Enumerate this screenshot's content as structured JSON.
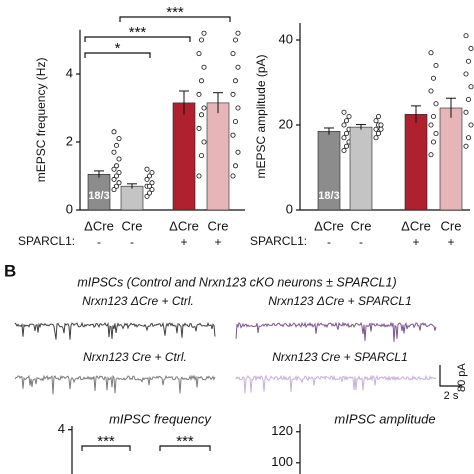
{
  "panel_b": {
    "label": "B",
    "title": "mIPSCs (Control and Nrxn123 cKO neurons ± SPARCL1)",
    "traces": [
      "Nrxn123 ΔCre + Ctrl.",
      "Nrxn123 ΔCre + SPARCL1",
      "Nrxn123 Cre + Ctrl.",
      "Nrxn123 Cre + SPARCL1"
    ],
    "scale_y": "80 pA",
    "scale_x": "2 s"
  },
  "chart_data": [
    {
      "type": "bar",
      "y_label": "mEPSC frequency (Hz)",
      "categories": [
        "ΔCre",
        "Cre",
        "ΔCre",
        "Cre"
      ],
      "sparcl1_label": "SPARCL1:",
      "sparcl1": [
        "-",
        "-",
        "+",
        "+"
      ],
      "values": [
        1.05,
        0.7,
        3.15,
        3.15
      ],
      "errors": [
        0.1,
        0.07,
        0.35,
        0.3
      ],
      "colors": [
        "#8c8c8c",
        "#c4c4c4",
        "#b0212f",
        "#e5b5b8"
      ],
      "bar_label": "18/3",
      "points": [
        [
          0.6,
          0.7,
          0.8,
          0.9,
          1.0,
          1.1,
          1.2,
          1.3,
          1.5,
          1.7,
          1.9,
          2.1,
          2.3
        ],
        [
          0.4,
          0.5,
          0.6,
          0.7,
          0.7,
          0.8,
          0.9,
          1.0,
          1.1,
          1.2
        ],
        [
          1.0,
          1.6,
          2.0,
          2.4,
          2.8,
          3.0,
          3.4,
          3.8,
          4.2,
          4.6,
          5.0,
          5.2
        ],
        [
          1.0,
          1.3,
          1.7,
          2.2,
          2.6,
          3.0,
          3.4,
          3.8,
          4.2,
          4.6,
          5.0,
          5.2
        ]
      ],
      "significance": [
        "***",
        "***",
        "*"
      ],
      "ylim": [
        0,
        5.3
      ],
      "yticks": [
        0,
        2,
        4
      ]
    },
    {
      "type": "bar",
      "y_label": "mEPSC amplitude (pA)",
      "categories": [
        "ΔCre",
        "Cre",
        "ΔCre",
        "Cre"
      ],
      "sparcl1_label": "SPARCL1:",
      "sparcl1": [
        "-",
        "-",
        "+",
        "+"
      ],
      "values": [
        18.5,
        19.5,
        22.5,
        24
      ],
      "errors": [
        0.8,
        0.6,
        2,
        2.3
      ],
      "colors": [
        "#8c8c8c",
        "#c4c4c4",
        "#b0212f",
        "#e5b5b8"
      ],
      "bar_label": "18/3",
      "points": [
        [
          14,
          15,
          16,
          17,
          18,
          19,
          20,
          21,
          22,
          23
        ],
        [
          17,
          18,
          19,
          19,
          20,
          20,
          21,
          22
        ],
        [
          13,
          16,
          18,
          20,
          22,
          25,
          28,
          31,
          34,
          37
        ],
        [
          15,
          17,
          20,
          23,
          26,
          29,
          32,
          35,
          38,
          41
        ]
      ],
      "ylim": [
        0,
        44
      ],
      "yticks": [
        0,
        20,
        40
      ]
    },
    {
      "type": "bar",
      "title": "mIPSC frequency",
      "significance": [
        "***",
        "***"
      ],
      "ylim": [
        0,
        4.1
      ],
      "yticks": [
        4
      ]
    },
    {
      "type": "bar",
      "title": "mIPSC amplitude",
      "ylim": [
        0,
        125
      ],
      "yticks": [
        100,
        120
      ]
    }
  ]
}
